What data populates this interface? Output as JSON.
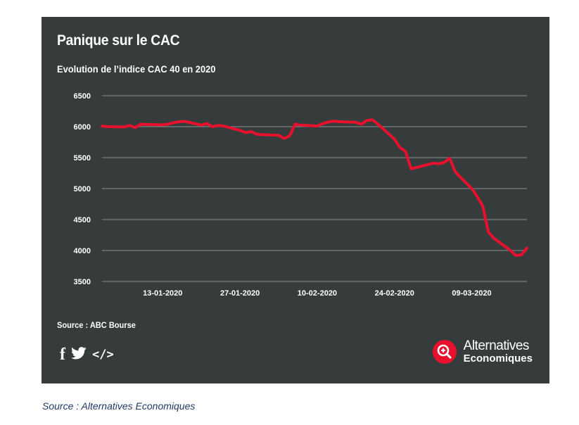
{
  "card": {
    "title": "Panique sur le CAC",
    "subtitle": "Evolution de l’indice CAC 40 en 2020",
    "source": "Source : ABC Bourse"
  },
  "social": {
    "facebook_label": "f",
    "twitter_icon": "twitter-bird-icon",
    "embed_label": "</>"
  },
  "logo": {
    "line1": "Alternatives",
    "line2": "Economiques",
    "icon": "magnifier-plus-icon"
  },
  "caption": "Source : Alternatives Economiques",
  "colors": {
    "background": "#363b3c",
    "line": "#e8112d",
    "grid": "#8c9192",
    "text": "#ffffff",
    "caption": "#1f3864"
  },
  "chart_data": {
    "type": "line",
    "title": "Panique sur le CAC",
    "subtitle": "Evolution de l’indice CAC 40 en 2020",
    "xlabel": "",
    "ylabel": "",
    "ylim": [
      3500,
      6500
    ],
    "yticks": [
      3500,
      4000,
      4500,
      5000,
      5500,
      6000,
      6500
    ],
    "xticks": [
      "13-01-2020",
      "27-01-2020",
      "10-02-2020",
      "24-02-2020",
      "09-03-2020"
    ],
    "xlim": [
      "2020-01-02",
      "2020-03-19"
    ],
    "grid": true,
    "legend": "none",
    "series": [
      {
        "name": "",
        "x": [
          "2020-01-02",
          "2020-01-03",
          "2020-01-06",
          "2020-01-07",
          "2020-01-08",
          "2020-01-09",
          "2020-01-10",
          "2020-01-13",
          "2020-01-14",
          "2020-01-15",
          "2020-01-16",
          "2020-01-17",
          "2020-01-20",
          "2020-01-21",
          "2020-01-22",
          "2020-01-23",
          "2020-01-24",
          "2020-01-27",
          "2020-01-28",
          "2020-01-29",
          "2020-01-30",
          "2020-01-31",
          "2020-02-03",
          "2020-02-04",
          "2020-02-05",
          "2020-02-06",
          "2020-02-07",
          "2020-02-10",
          "2020-02-11",
          "2020-02-12",
          "2020-02-13",
          "2020-02-14",
          "2020-02-17",
          "2020-02-18",
          "2020-02-19",
          "2020-02-20",
          "2020-02-21",
          "2020-02-24",
          "2020-02-25",
          "2020-02-26",
          "2020-02-27",
          "2020-02-28",
          "2020-03-02",
          "2020-03-03",
          "2020-03-04",
          "2020-03-05",
          "2020-03-06",
          "2020-03-09",
          "2020-03-10",
          "2020-03-11",
          "2020-03-12",
          "2020-03-13",
          "2020-03-16",
          "2020-03-17",
          "2020-03-18",
          "2020-03-19"
        ],
        "y": [
          6010,
          6000,
          5995,
          6020,
          5985,
          6040,
          6035,
          6030,
          6040,
          6065,
          6080,
          6085,
          6025,
          6050,
          6000,
          6020,
          6010,
          5940,
          5905,
          5920,
          5880,
          5870,
          5860,
          5810,
          5850,
          6040,
          6025,
          6010,
          6050,
          6075,
          6090,
          6080,
          6070,
          6040,
          6100,
          6110,
          6040,
          5800,
          5660,
          5600,
          5320,
          5340,
          5410,
          5400,
          5420,
          5490,
          5270,
          5000,
          4870,
          4720,
          4300,
          4200,
          4000,
          3920,
          3930,
          4040
        ]
      }
    ]
  }
}
